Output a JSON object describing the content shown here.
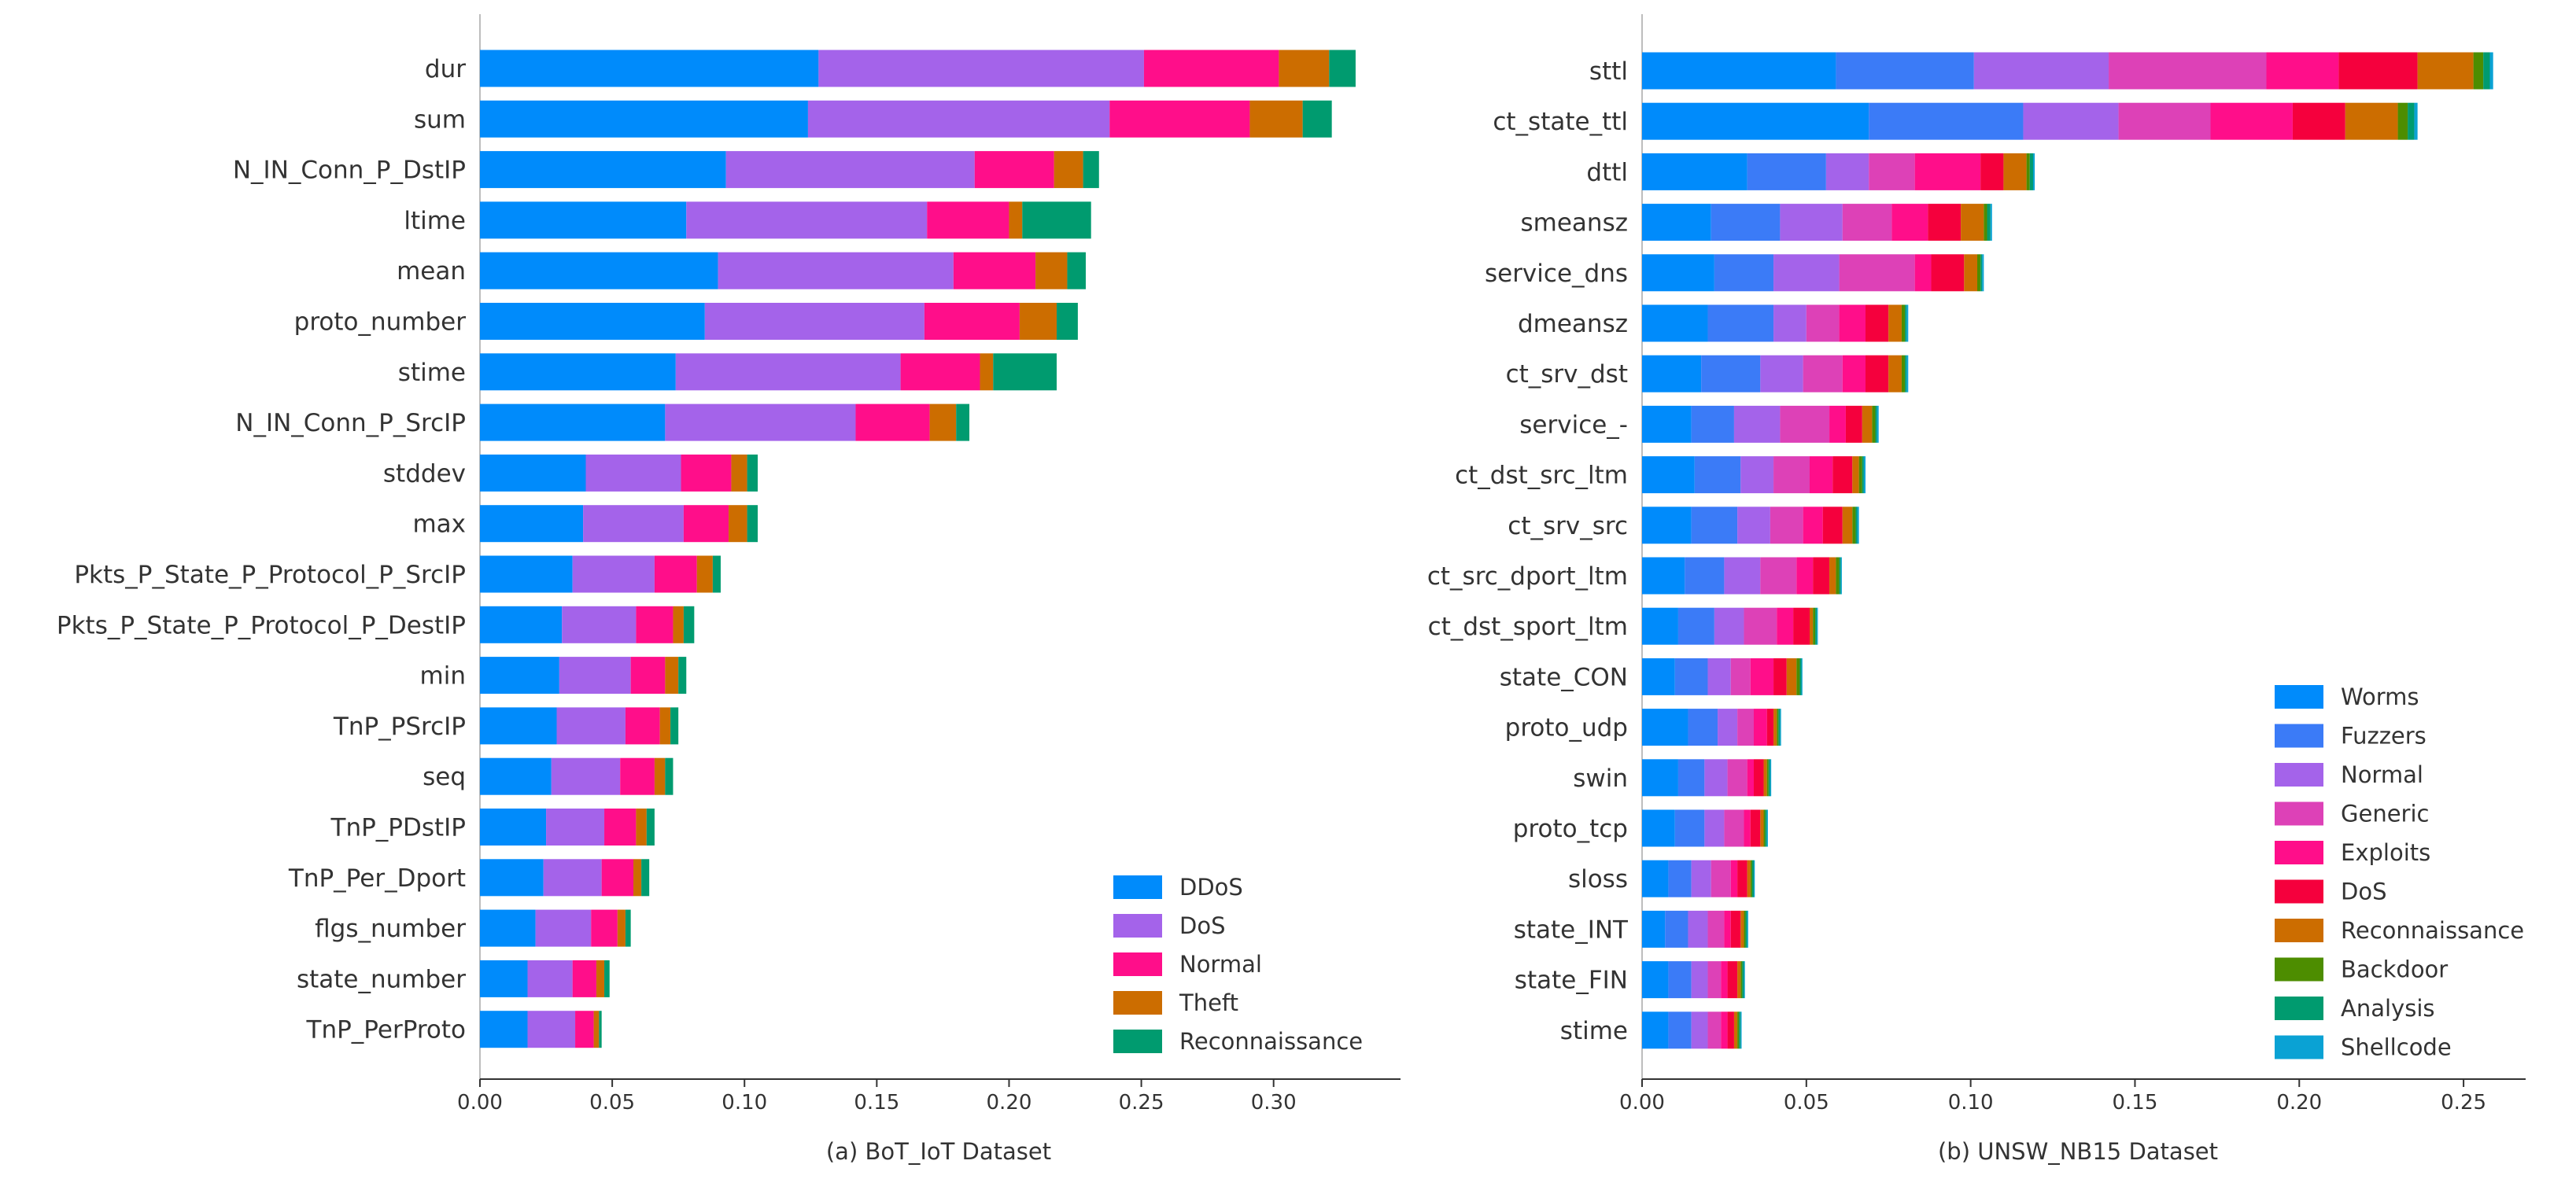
{
  "figure": {
    "panels": [
      {
        "caption": "(a) BoT_IoT Dataset"
      },
      {
        "caption": "(b) UNSW_NB15 Dataset"
      }
    ]
  },
  "chart_data": [
    {
      "type": "bar",
      "orientation": "horizontal",
      "stacked": true,
      "title": "(a) BoT_IoT Dataset",
      "xlabel": "",
      "ylabel": "",
      "xlim": [
        0,
        0.345
      ],
      "xticks": [
        0.0,
        0.05,
        0.1,
        0.15,
        0.2,
        0.25,
        0.3
      ],
      "tick_labels": [
        "0.00",
        "0.05",
        "0.10",
        "0.15",
        "0.20",
        "0.25",
        "0.30"
      ],
      "legend_position": "bottom-right",
      "categories": [
        "dur",
        "sum",
        "N_IN_Conn_P_DstIP",
        "ltime",
        "mean",
        "proto_number",
        "stime",
        "N_IN_Conn_P_SrcIP",
        "stddev",
        "max",
        "Pkts_P_State_P_Protocol_P_SrcIP",
        "Pkts_P_State_P_Protocol_P_DestIP",
        "min",
        "TnP_PSrcIP",
        "seq",
        "TnP_PDstIP",
        "TnP_Per_Dport",
        "flgs_number",
        "state_number",
        "TnP_PerProto"
      ],
      "series": [
        {
          "name": "DDoS",
          "color": "#008bfb",
          "values": [
            0.128,
            0.124,
            0.093,
            0.078,
            0.09,
            0.085,
            0.074,
            0.07,
            0.04,
            0.039,
            0.035,
            0.031,
            0.03,
            0.029,
            0.027,
            0.025,
            0.024,
            0.021,
            0.018,
            0.018
          ]
        },
        {
          "name": "DoS",
          "color": "#a463ea",
          "values": [
            0.123,
            0.114,
            0.094,
            0.091,
            0.089,
            0.083,
            0.085,
            0.072,
            0.036,
            0.038,
            0.031,
            0.028,
            0.027,
            0.026,
            0.026,
            0.022,
            0.022,
            0.021,
            0.017,
            0.018
          ]
        },
        {
          "name": "Normal",
          "color": "#ff0e8a",
          "values": [
            0.051,
            0.053,
            0.03,
            0.031,
            0.031,
            0.036,
            0.03,
            0.028,
            0.019,
            0.017,
            0.016,
            0.014,
            0.013,
            0.013,
            0.013,
            0.012,
            0.012,
            0.01,
            0.009,
            0.007
          ]
        },
        {
          "name": "Theft",
          "color": "#cc6d00",
          "values": [
            0.019,
            0.02,
            0.011,
            0.005,
            0.012,
            0.014,
            0.005,
            0.01,
            0.006,
            0.007,
            0.006,
            0.004,
            0.005,
            0.004,
            0.004,
            0.004,
            0.003,
            0.003,
            0.003,
            0.002
          ]
        },
        {
          "name": "Reconnaissance",
          "color": "#009b6f",
          "values": [
            0.01,
            0.011,
            0.006,
            0.026,
            0.007,
            0.008,
            0.024,
            0.005,
            0.004,
            0.004,
            0.003,
            0.004,
            0.003,
            0.003,
            0.003,
            0.003,
            0.003,
            0.002,
            0.002,
            0.001
          ]
        }
      ]
    },
    {
      "type": "bar",
      "orientation": "horizontal",
      "stacked": true,
      "title": "(b) UNSW_NB15 Dataset",
      "xlabel": "",
      "ylabel": "",
      "xlim": [
        0,
        0.2665
      ],
      "xticks": [
        0.0,
        0.05,
        0.1,
        0.15,
        0.2,
        0.25
      ],
      "tick_labels": [
        "0.00",
        "0.05",
        "0.10",
        "0.15",
        "0.20",
        "0.25"
      ],
      "legend_position": "bottom-right",
      "categories": [
        "sttl",
        "ct_state_ttl",
        "dttl",
        "smeansz",
        "service_dns",
        "dmeansz",
        "ct_srv_dst",
        "service_-",
        "ct_dst_src_ltm",
        "ct_srv_src",
        "ct_src_dport_ltm",
        "ct_dst_sport_ltm",
        "state_CON",
        "proto_udp",
        "swin",
        "proto_tcp",
        "sloss",
        "state_INT",
        "state_FIN",
        "stime"
      ],
      "series": [
        {
          "name": "Worms",
          "color": "#008bfb",
          "values": [
            0.059,
            0.069,
            0.032,
            0.021,
            0.022,
            0.02,
            0.018,
            0.015,
            0.016,
            0.015,
            0.013,
            0.011,
            0.01,
            0.014,
            0.011,
            0.01,
            0.008,
            0.007,
            0.008,
            0.008
          ]
        },
        {
          "name": "Fuzzers",
          "color": "#3b7bf7",
          "values": [
            0.042,
            0.047,
            0.024,
            0.021,
            0.018,
            0.02,
            0.018,
            0.013,
            0.014,
            0.014,
            0.012,
            0.011,
            0.01,
            0.009,
            0.008,
            0.009,
            0.007,
            0.007,
            0.007,
            0.007
          ]
        },
        {
          "name": "Normal",
          "color": "#a463ea",
          "values": [
            0.041,
            0.029,
            0.013,
            0.019,
            0.02,
            0.01,
            0.013,
            0.014,
            0.01,
            0.01,
            0.011,
            0.009,
            0.007,
            0.006,
            0.007,
            0.006,
            0.006,
            0.006,
            0.005,
            0.005
          ]
        },
        {
          "name": "Generic",
          "color": "#dd41b7",
          "values": [
            0.048,
            0.028,
            0.014,
            0.015,
            0.023,
            0.01,
            0.012,
            0.015,
            0.011,
            0.01,
            0.011,
            0.01,
            0.006,
            0.005,
            0.006,
            0.006,
            0.006,
            0.005,
            0.004,
            0.004
          ]
        },
        {
          "name": "Exploits",
          "color": "#ff0e8a",
          "values": [
            0.022,
            0.025,
            0.02,
            0.011,
            0.005,
            0.008,
            0.007,
            0.005,
            0.007,
            0.006,
            0.005,
            0.005,
            0.007,
            0.004,
            0.002,
            0.002,
            0.002,
            0.002,
            0.002,
            0.002
          ]
        },
        {
          "name": "DoS",
          "color": "#f5003d",
          "values": [
            0.024,
            0.016,
            0.007,
            0.01,
            0.01,
            0.007,
            0.007,
            0.005,
            0.006,
            0.006,
            0.005,
            0.005,
            0.004,
            0.002,
            0.003,
            0.003,
            0.003,
            0.003,
            0.003,
            0.002
          ]
        },
        {
          "name": "Reconnaissance",
          "color": "#cc6d00",
          "values": [
            0.017,
            0.016,
            0.007,
            0.007,
            0.004,
            0.004,
            0.004,
            0.003,
            0.002,
            0.003,
            0.002,
            0.001,
            0.003,
            0.001,
            0.001,
            0.001,
            0.001,
            0.001,
            0.001,
            0.001
          ]
        },
        {
          "name": "Backdoor",
          "color": "#4d8d00",
          "values": [
            0.003,
            0.003,
            0.001,
            0.001,
            0.001,
            0.001,
            0.001,
            0.001,
            0.001,
            0.001,
            0.001,
            0.0007,
            0.001,
            0.0005,
            0.0005,
            0.0005,
            0.0005,
            0.0005,
            0.0005,
            0.0005
          ]
        },
        {
          "name": "Analysis",
          "color": "#009b6f",
          "values": [
            0.002,
            0.002,
            0.001,
            0.001,
            0.0005,
            0.0005,
            0.0005,
            0.0005,
            0.0005,
            0.0005,
            0.0005,
            0.0005,
            0.0005,
            0.0005,
            0.0005,
            0.0005,
            0.0005,
            0.0005,
            0.0005,
            0.0005
          ]
        },
        {
          "name": "Shellcode",
          "color": "#0aa2d4",
          "values": [
            0.001,
            0.001,
            0.0005,
            0.0005,
            0.0005,
            0.0005,
            0.0005,
            0.0005,
            0.0005,
            0.0005,
            0.0003,
            0.0003,
            0.0003,
            0.0003,
            0.0003,
            0.0003,
            0.0003,
            0.0003,
            0.0003,
            0.0003
          ]
        }
      ]
    }
  ]
}
